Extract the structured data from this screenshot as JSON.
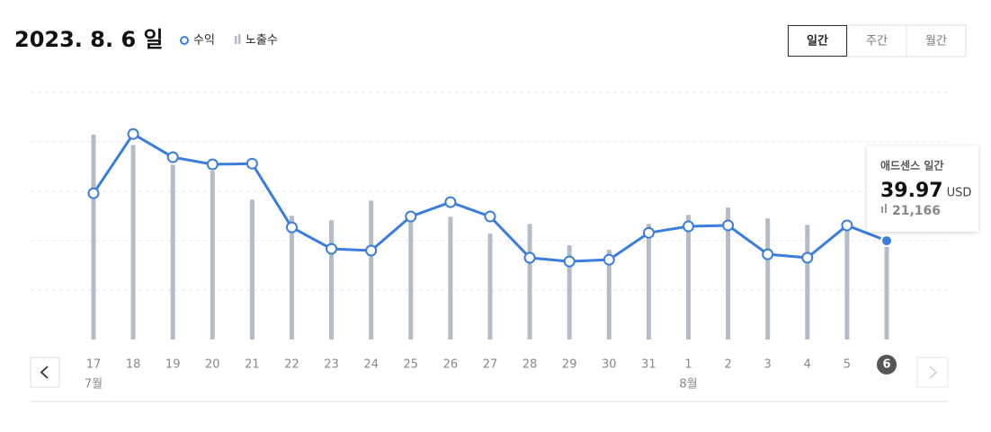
{
  "chart_data": {
    "type": "line",
    "title": "2023. 8. 6 일",
    "buttons": [
      {
        "label": "일간",
        "active": true
      },
      {
        "label": "주간",
        "active": false
      },
      {
        "label": "월간",
        "active": false
      }
    ],
    "categories": [
      "17",
      "18",
      "19",
      "20",
      "21",
      "22",
      "23",
      "24",
      "25",
      "26",
      "27",
      "28",
      "29",
      "30",
      "31",
      "1",
      "2",
      "3",
      "4",
      "5",
      "6"
    ],
    "months": [
      {
        "label": "7월",
        "start": "17"
      },
      {
        "label": "8월",
        "start": "1"
      }
    ],
    "selected": "6",
    "ylim": [
      0,
      100
    ],
    "y2lim": [
      0,
      53000
    ],
    "grid": true,
    "series": [
      {
        "name": "수익",
        "type": "line",
        "color": "#3b7ddd",
        "values": [
          59.2,
          83.2,
          73.8,
          70.9,
          71.2,
          45.4,
          36.7,
          36.0,
          49.8,
          55.6,
          49.8,
          33.1,
          31.6,
          32.3,
          43.2,
          45.8,
          46.2,
          34.5,
          33.1,
          46.2,
          39.97
        ]
      },
      {
        "name": "노출수",
        "type": "bar",
        "color": "#b3bcc7",
        "axis": "y2",
        "values": [
          44000,
          41750,
          37500,
          36200,
          30000,
          26550,
          25600,
          29800,
          26550,
          26350,
          22700,
          24800,
          20200,
          19250,
          24800,
          26750,
          28300,
          26000,
          24600,
          23700,
          21166
        ],
        "value_labels": [
          null,
          null,
          null,
          null,
          null,
          null,
          null,
          null,
          null,
          null,
          null,
          null,
          null,
          null,
          null,
          null,
          null,
          null,
          null,
          null,
          "21,166"
        ]
      }
    ],
    "tooltip": {
      "title": "애드센스 일간",
      "unit": "USD"
    }
  }
}
